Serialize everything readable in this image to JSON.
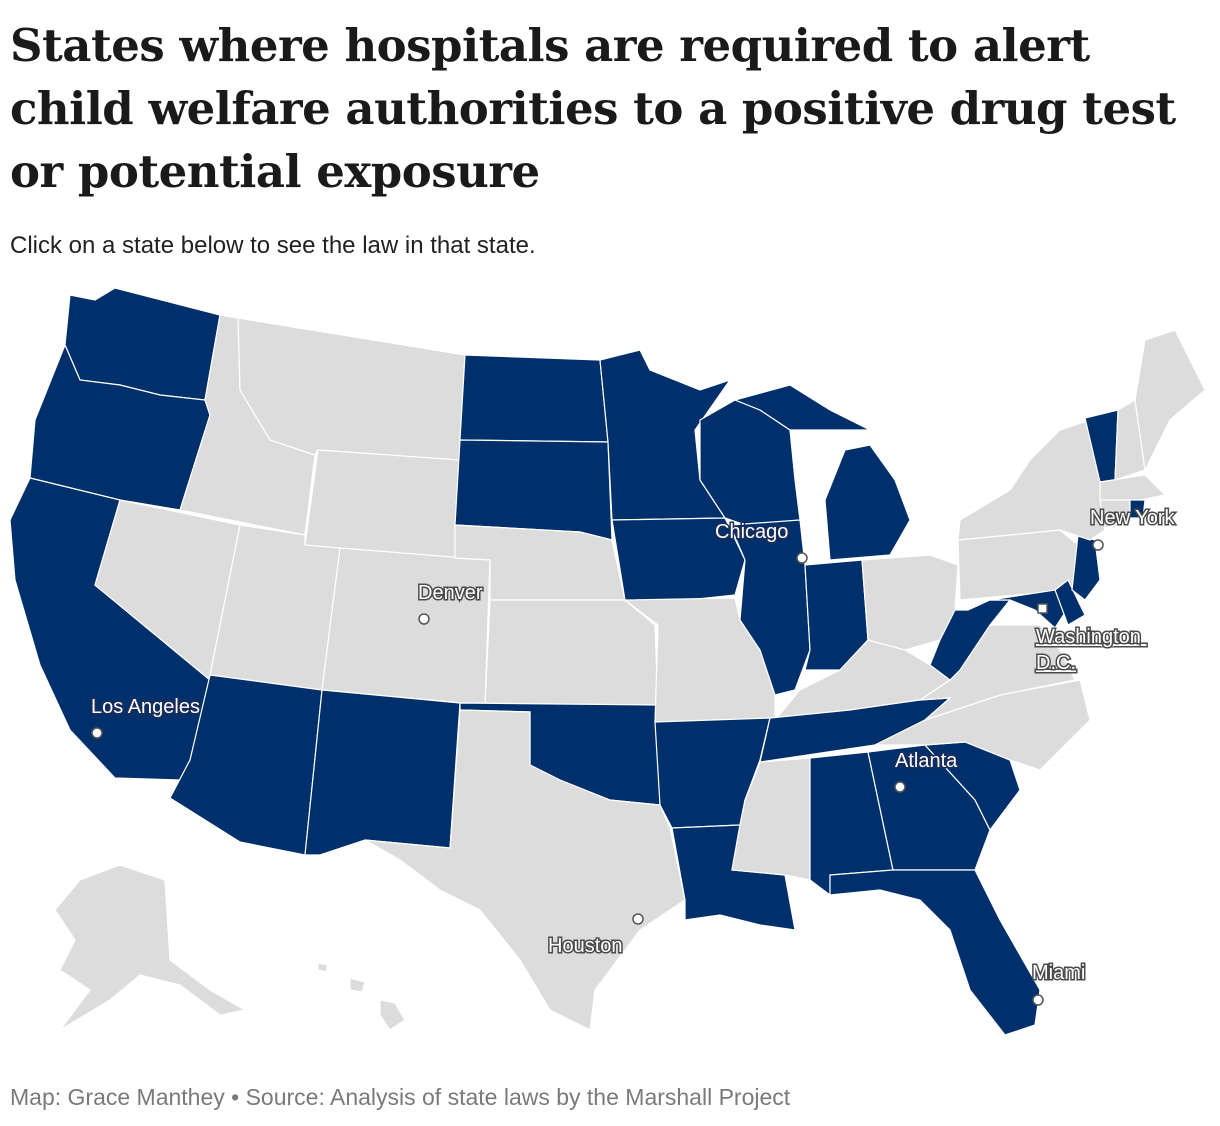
{
  "header": {
    "title": "States where hospitals are required to alert child welfare authorities to a positive drug test or potential exposure",
    "subtitle": "Click on a state below to see the law in that state."
  },
  "footer": {
    "source": "Map: Grace Manthey • Source: Analysis of state laws by the Marshall Project"
  },
  "colors": {
    "required": "#00306b",
    "not_required": "#dcdcdc"
  },
  "states": [
    {
      "id": "WA",
      "required": true
    },
    {
      "id": "OR",
      "required": true
    },
    {
      "id": "CA",
      "required": true
    },
    {
      "id": "ID",
      "required": false
    },
    {
      "id": "NV",
      "required": false
    },
    {
      "id": "MT",
      "required": false
    },
    {
      "id": "WY",
      "required": false
    },
    {
      "id": "UT",
      "required": false
    },
    {
      "id": "CO",
      "required": false
    },
    {
      "id": "AZ",
      "required": true
    },
    {
      "id": "NM",
      "required": true
    },
    {
      "id": "ND",
      "required": true
    },
    {
      "id": "SD",
      "required": true
    },
    {
      "id": "NE",
      "required": false
    },
    {
      "id": "KS",
      "required": false
    },
    {
      "id": "OK",
      "required": true
    },
    {
      "id": "TX",
      "required": false
    },
    {
      "id": "MN",
      "required": true
    },
    {
      "id": "IA",
      "required": true
    },
    {
      "id": "MO",
      "required": false
    },
    {
      "id": "AR",
      "required": true
    },
    {
      "id": "LA",
      "required": true
    },
    {
      "id": "WI",
      "required": true
    },
    {
      "id": "IL",
      "required": true
    },
    {
      "id": "MI",
      "required": true
    },
    {
      "id": "IN",
      "required": true
    },
    {
      "id": "OH",
      "required": false
    },
    {
      "id": "KY",
      "required": false
    },
    {
      "id": "TN",
      "required": true
    },
    {
      "id": "MS",
      "required": false
    },
    {
      "id": "AL",
      "required": true
    },
    {
      "id": "GA",
      "required": true
    },
    {
      "id": "FL",
      "required": true
    },
    {
      "id": "SC",
      "required": true
    },
    {
      "id": "NC",
      "required": false
    },
    {
      "id": "VA",
      "required": false
    },
    {
      "id": "WV",
      "required": true
    },
    {
      "id": "MD",
      "required": true
    },
    {
      "id": "DE",
      "required": true
    },
    {
      "id": "NJ",
      "required": true
    },
    {
      "id": "PA",
      "required": false
    },
    {
      "id": "NY",
      "required": false
    },
    {
      "id": "VT",
      "required": true
    },
    {
      "id": "NH",
      "required": false
    },
    {
      "id": "ME",
      "required": false
    },
    {
      "id": "MA",
      "required": false
    },
    {
      "id": "RI",
      "required": true
    },
    {
      "id": "CT",
      "required": false
    },
    {
      "id": "AK",
      "required": false
    },
    {
      "id": "HI",
      "required": false
    }
  ],
  "cities": [
    {
      "name": "Chicago"
    },
    {
      "name": "New York"
    },
    {
      "name": "Denver"
    },
    {
      "name": "Washington D.C."
    },
    {
      "name": "Los Angeles"
    },
    {
      "name": "Atlanta"
    },
    {
      "name": "Houston"
    },
    {
      "name": "Miami"
    }
  ]
}
